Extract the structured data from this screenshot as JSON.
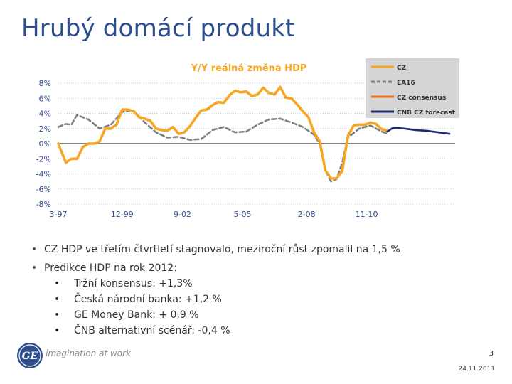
{
  "slide": {
    "title": "Hrubý domácí produkt",
    "page_number": "3",
    "date": "24.11.2011",
    "tagline": "imagination at work",
    "logo_text": "GE"
  },
  "bullets": {
    "b1": "CZ HDP ve třetím čtvrtletí stagnovalo, meziroční růst zpomalil na 1,5 %",
    "b2": "Predikce HDP na rok 2012:",
    "sub": [
      "Tržní konsensus: +1,3%",
      "Česká národní banka: +1,2 %",
      "GE Money Bank: + 0,9 %",
      "ČNB alternativní scénář: -0,4 %"
    ]
  },
  "chart_data": {
    "type": "line",
    "title": "Y/Y reálná změna HDP",
    "xlabel": "",
    "ylabel": "",
    "ylim": [
      -8,
      8
    ],
    "yticks": [
      8,
      6,
      4,
      2,
      0,
      -2,
      -4,
      -6,
      -8
    ],
    "ytick_labels": [
      "8%",
      "6%",
      "4%",
      "2%",
      "0%",
      "-2%",
      "-4%",
      "-6%",
      "-8%"
    ],
    "x_range": [
      1997.17,
      2014.75
    ],
    "xtick_positions": [
      1997.17,
      2000.0,
      2002.67,
      2005.33,
      2008.17,
      2010.83
    ],
    "xtick_labels": [
      "3-97",
      "12-99",
      "9-02",
      "5-05",
      "2-08",
      "11-10"
    ],
    "grid": "horizontal dotted",
    "legend_position": "top-right",
    "colors": {
      "CZ": "#f5a623",
      "EA16": "#808080",
      "CZ consensus": "#f07020",
      "CNB CZ forecast": "#1f2a78",
      "legend_bg": "#d5d5d5",
      "title": "#f5a623",
      "axis_text": "#2f4e8e",
      "zero_line": "#808080"
    },
    "series": [
      {
        "name": "CZ",
        "style": "solid",
        "x": [
          1997.17,
          1997.5,
          1997.75,
          1998.0,
          1998.25,
          1998.5,
          1998.75,
          1999.0,
          1999.25,
          1999.5,
          1999.75,
          2000.0,
          2000.25,
          2000.5,
          2000.75,
          2001.0,
          2001.25,
          2001.5,
          2001.75,
          2002.0,
          2002.25,
          2002.5,
          2002.75,
          2003.0,
          2003.25,
          2003.5,
          2003.75,
          2004.0,
          2004.25,
          2004.5,
          2004.75,
          2005.0,
          2005.25,
          2005.5,
          2005.75,
          2006.0,
          2006.25,
          2006.5,
          2006.75,
          2007.0,
          2007.25,
          2007.5,
          2007.75,
          2008.0,
          2008.25,
          2008.5,
          2008.75,
          2009.0,
          2009.25,
          2009.5,
          2009.75,
          2010.0,
          2010.25,
          2010.5,
          2010.75,
          2011.0,
          2011.25,
          2011.5,
          2011.75
        ],
        "y": [
          0.0,
          -2.5,
          -2.0,
          -2.0,
          -0.5,
          0.0,
          0.0,
          0.3,
          2.0,
          2.0,
          2.5,
          4.5,
          4.5,
          4.3,
          3.5,
          3.3,
          3.0,
          2.0,
          1.8,
          1.7,
          2.2,
          1.3,
          1.5,
          2.3,
          3.4,
          4.4,
          4.5,
          5.1,
          5.5,
          5.4,
          6.4,
          7.0,
          6.8,
          6.9,
          6.3,
          6.5,
          7.4,
          6.7,
          6.5,
          7.5,
          6.1,
          6.0,
          5.2,
          4.3,
          3.5,
          1.5,
          0.3,
          -3.5,
          -4.6,
          -4.6,
          -3.6,
          1.0,
          2.4,
          2.5,
          2.5,
          2.8,
          2.6,
          1.9,
          1.7
        ]
      },
      {
        "name": "EA16",
        "style": "dashed",
        "x": [
          1997.17,
          1997.5,
          1997.75,
          1998.0,
          1998.5,
          1999.0,
          1999.5,
          2000.0,
          2000.5,
          2001.0,
          2001.5,
          2002.0,
          2002.5,
          2003.0,
          2003.5,
          2004.0,
          2004.5,
          2005.0,
          2005.5,
          2006.0,
          2006.5,
          2007.0,
          2007.5,
          2008.0,
          2008.5,
          2008.75,
          2009.0,
          2009.25,
          2009.5,
          2009.75,
          2010.0,
          2010.5,
          2011.0,
          2011.5,
          2011.75
        ],
        "y": [
          2.2,
          2.6,
          2.5,
          3.8,
          3.2,
          2.0,
          2.5,
          4.2,
          4.4,
          2.8,
          1.5,
          0.8,
          0.9,
          0.5,
          0.6,
          1.8,
          2.2,
          1.5,
          1.6,
          2.5,
          3.2,
          3.3,
          2.8,
          2.2,
          1.2,
          0.0,
          -3.5,
          -5.0,
          -4.7,
          -2.5,
          0.8,
          2.0,
          2.4,
          1.6,
          1.3
        ]
      },
      {
        "name": "CZ consensus",
        "style": "solid",
        "x": [],
        "y": []
      },
      {
        "name": "CNB CZ forecast",
        "style": "solid",
        "x": [
          2011.75,
          2012.0,
          2012.5,
          2013.0,
          2013.5,
          2014.0,
          2014.5
        ],
        "y": [
          1.6,
          2.1,
          2.0,
          1.8,
          1.7,
          1.5,
          1.3
        ]
      }
    ]
  }
}
